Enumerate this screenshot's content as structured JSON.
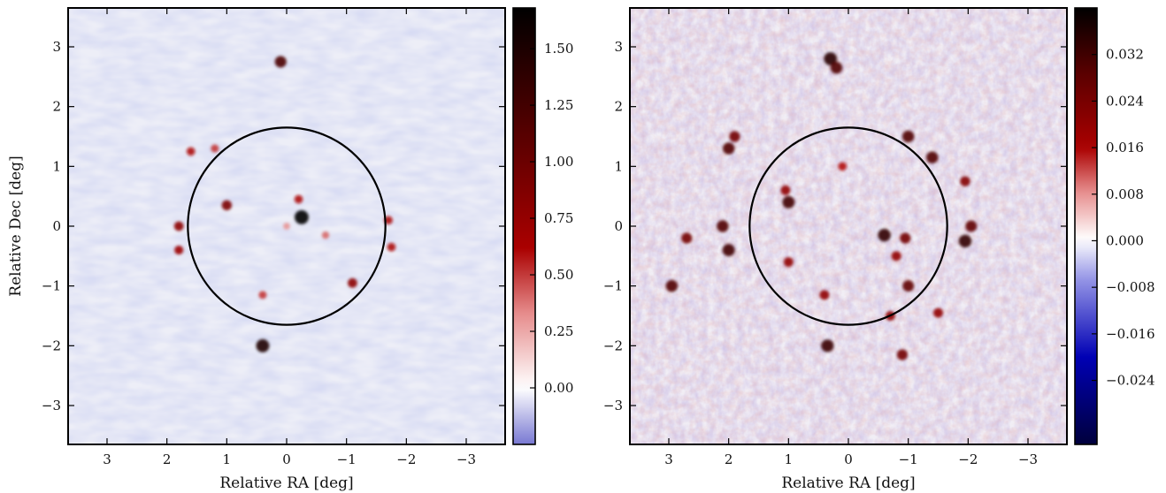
{
  "chart_data": [
    {
      "type": "heatmap",
      "panel": "left",
      "xlabel": "Relative RA [deg]",
      "ylabel": "Relative Dec [deg]",
      "xlim": [
        3.65,
        -3.65
      ],
      "ylim": [
        -3.65,
        3.65
      ],
      "x_ticks": [
        3,
        2,
        1,
        0,
        -1,
        -2,
        -3
      ],
      "y_ticks": [
        3,
        2,
        1,
        0,
        -1,
        -2,
        -3
      ],
      "x_tick_labels": [
        "3",
        "2",
        "1",
        "0",
        "−1",
        "−2",
        "−3"
      ],
      "y_tick_labels": [
        "3",
        "2",
        "1",
        "0",
        "−1",
        "−2",
        "−3"
      ],
      "circle_radius_deg": 1.65,
      "colorbar": {
        "min": -0.25,
        "max": 1.68,
        "ticks": [
          1.5,
          1.25,
          1.0,
          0.75,
          0.5,
          0.25,
          0.0
        ],
        "tick_labels": [
          "1.50",
          "1.25",
          "1.00",
          "0.75",
          "0.50",
          "0.25",
          "0.00"
        ],
        "cmap": "seismic"
      },
      "sources": [
        {
          "x": 0.1,
          "y": 2.75,
          "v": 1.2
        },
        {
          "x": -0.25,
          "y": 0.15,
          "v": 1.65
        },
        {
          "x": -0.2,
          "y": 0.45,
          "v": 0.6
        },
        {
          "x": 1.0,
          "y": 0.35,
          "v": 0.9
        },
        {
          "x": 1.8,
          "y": 0.0,
          "v": 0.8
        },
        {
          "x": 1.8,
          "y": -0.4,
          "v": 0.7
        },
        {
          "x": 1.6,
          "y": 1.25,
          "v": 0.6
        },
        {
          "x": 1.2,
          "y": 1.3,
          "v": 0.5
        },
        {
          "x": -1.1,
          "y": -0.95,
          "v": 0.8
        },
        {
          "x": -1.7,
          "y": 0.1,
          "v": 0.6
        },
        {
          "x": -1.75,
          "y": -0.35,
          "v": 0.6
        },
        {
          "x": 0.4,
          "y": -1.15,
          "v": 0.5
        },
        {
          "x": 0.4,
          "y": -2.0,
          "v": 1.5
        },
        {
          "x": -0.65,
          "y": -0.15,
          "v": 0.4
        },
        {
          "x": 0.0,
          "y": 0.0,
          "v": 0.3
        }
      ]
    },
    {
      "type": "heatmap",
      "panel": "right",
      "xlabel": "Relative RA [deg]",
      "ylabel": "",
      "xlim": [
        3.65,
        -3.65
      ],
      "ylim": [
        -3.65,
        3.65
      ],
      "x_ticks": [
        3,
        2,
        1,
        0,
        -1,
        -2,
        -3
      ],
      "y_ticks": [
        3,
        2,
        1,
        0,
        -1,
        -2,
        -3
      ],
      "x_tick_labels": [
        "3",
        "2",
        "1",
        "0",
        "−1",
        "−2",
        "−3"
      ],
      "y_tick_labels": [
        "3",
        "2",
        "1",
        "0",
        "−1",
        "−2",
        "−3"
      ],
      "circle_radius_deg": 1.65,
      "colorbar": {
        "min": -0.035,
        "max": 0.04,
        "ticks": [
          0.032,
          0.024,
          0.016,
          0.008,
          0.0,
          -0.008,
          -0.016,
          -0.024
        ],
        "tick_labels": [
          "0.032",
          "0.024",
          "0.016",
          "0.008",
          "0.000",
          "−0.008",
          "−0.016",
          "−0.024"
        ],
        "cmap": "seismic"
      },
      "sources": [
        {
          "x": 0.3,
          "y": 2.8,
          "v": 0.035
        },
        {
          "x": 0.2,
          "y": 2.65,
          "v": 0.03
        },
        {
          "x": 2.0,
          "y": 1.3,
          "v": 0.03
        },
        {
          "x": 1.9,
          "y": 1.5,
          "v": 0.025
        },
        {
          "x": 2.1,
          "y": 0.0,
          "v": 0.03
        },
        {
          "x": 2.0,
          "y": -0.4,
          "v": 0.032
        },
        {
          "x": 2.7,
          "y": -0.2,
          "v": 0.025
        },
        {
          "x": 2.95,
          "y": -1.0,
          "v": 0.03
        },
        {
          "x": 1.0,
          "y": 0.4,
          "v": 0.032
        },
        {
          "x": 1.05,
          "y": 0.6,
          "v": 0.02
        },
        {
          "x": -0.6,
          "y": -0.15,
          "v": 0.034
        },
        {
          "x": -0.95,
          "y": -0.2,
          "v": 0.025
        },
        {
          "x": -1.0,
          "y": 1.5,
          "v": 0.03
        },
        {
          "x": -1.4,
          "y": 1.15,
          "v": 0.03
        },
        {
          "x": -1.95,
          "y": -0.25,
          "v": 0.034
        },
        {
          "x": -2.05,
          "y": 0.0,
          "v": 0.028
        },
        {
          "x": -1.0,
          "y": -1.0,
          "v": 0.028
        },
        {
          "x": -0.7,
          "y": -1.5,
          "v": 0.02
        },
        {
          "x": 0.35,
          "y": -2.0,
          "v": 0.033
        },
        {
          "x": -0.9,
          "y": -2.15,
          "v": 0.025
        },
        {
          "x": 0.4,
          "y": -1.15,
          "v": 0.02
        },
        {
          "x": 1.0,
          "y": -0.6,
          "v": 0.02
        },
        {
          "x": -1.95,
          "y": 0.75,
          "v": 0.022
        },
        {
          "x": 0.1,
          "y": 1.0,
          "v": 0.015
        },
        {
          "x": -0.8,
          "y": -0.5,
          "v": 0.02
        },
        {
          "x": -1.5,
          "y": -1.45,
          "v": 0.02
        }
      ]
    }
  ]
}
